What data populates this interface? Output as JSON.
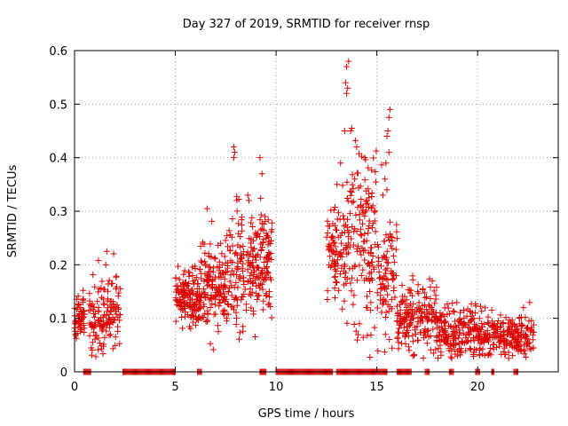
{
  "chart_data": {
    "type": "scatter",
    "title": "Day 327 of 2019, SRMTID for receiver rnsp",
    "xlabel": "GPS time / hours",
    "ylabel": "SRMTID / TECUs",
    "xlim": [
      0,
      24
    ],
    "ylim": [
      0,
      0.6
    ],
    "xticks": [
      0,
      5,
      10,
      15,
      20
    ],
    "xtick_labels": [
      "0",
      "5",
      "10",
      "15",
      "20"
    ],
    "yticks": [
      0,
      0.1,
      0.2,
      0.3,
      0.4,
      0.5,
      0.6
    ],
    "ytick_labels": [
      "0",
      "0.1",
      "0.2",
      "0.3",
      "0.4",
      "0.5",
      "0.6"
    ],
    "grid": true,
    "marker": "+",
    "marker_color": "#dd0000",
    "series": [
      {
        "name": "SRMTID",
        "clusters": [
          {
            "x": [
              0.0,
              0.5
            ],
            "y_center": 0.1,
            "y_spread": 0.02,
            "count": 60
          },
          {
            "x": [
              0.7,
              1.3
            ],
            "y_center": 0.1,
            "y_spread": 0.035,
            "count": 50
          },
          {
            "x": [
              1.3,
              2.3
            ],
            "y_center": 0.115,
            "y_spread": 0.04,
            "count": 90
          },
          {
            "x": [
              5.0,
              6.2
            ],
            "y_center": 0.14,
            "y_spread": 0.03,
            "count": 140
          },
          {
            "x": [
              6.2,
              7.5
            ],
            "y_center": 0.16,
            "y_spread": 0.04,
            "count": 150
          },
          {
            "x": [
              7.5,
              9.8
            ],
            "y_center": 0.2,
            "y_spread": 0.055,
            "count": 240
          },
          {
            "x": [
              12.5,
              13.5
            ],
            "y_center": 0.22,
            "y_spread": 0.05,
            "count": 90
          },
          {
            "x": [
              13.5,
              15.0
            ],
            "y_center": 0.25,
            "y_spread": 0.09,
            "count": 150
          },
          {
            "x": [
              15.0,
              16.0
            ],
            "y_center": 0.18,
            "y_spread": 0.06,
            "count": 90
          },
          {
            "x": [
              16.0,
              18.0
            ],
            "y_center": 0.1,
            "y_spread": 0.03,
            "count": 180
          },
          {
            "x": [
              18.0,
              20.0
            ],
            "y_center": 0.075,
            "y_spread": 0.025,
            "count": 180
          },
          {
            "x": [
              20.0,
              22.8
            ],
            "y_center": 0.065,
            "y_spread": 0.022,
            "count": 240
          }
        ],
        "peaks": [
          {
            "x": 1.6,
            "y": 0.225
          },
          {
            "x": 1.55,
            "y": 0.2
          },
          {
            "x": 7.9,
            "y": 0.42
          },
          {
            "x": 7.95,
            "y": 0.41
          },
          {
            "x": 7.9,
            "y": 0.4
          },
          {
            "x": 8.05,
            "y": 0.32
          },
          {
            "x": 8.6,
            "y": 0.33
          },
          {
            "x": 8.65,
            "y": 0.32
          },
          {
            "x": 9.2,
            "y": 0.4
          },
          {
            "x": 9.3,
            "y": 0.37
          },
          {
            "x": 9.45,
            "y": 0.29
          },
          {
            "x": 13.6,
            "y": 0.58
          },
          {
            "x": 13.5,
            "y": 0.57
          },
          {
            "x": 13.45,
            "y": 0.54
          },
          {
            "x": 13.55,
            "y": 0.53
          },
          {
            "x": 13.5,
            "y": 0.52
          },
          {
            "x": 13.4,
            "y": 0.45
          },
          {
            "x": 13.75,
            "y": 0.455
          },
          {
            "x": 13.7,
            "y": 0.45
          },
          {
            "x": 13.2,
            "y": 0.39
          },
          {
            "x": 14.0,
            "y": 0.42
          },
          {
            "x": 14.4,
            "y": 0.4
          },
          {
            "x": 13.9,
            "y": 0.36
          },
          {
            "x": 15.65,
            "y": 0.49
          },
          {
            "x": 15.6,
            "y": 0.475
          },
          {
            "x": 15.55,
            "y": 0.45
          },
          {
            "x": 15.5,
            "y": 0.44
          },
          {
            "x": 15.6,
            "y": 0.41
          },
          {
            "x": 15.45,
            "y": 0.39
          },
          {
            "x": 15.4,
            "y": 0.36
          },
          {
            "x": 15.5,
            "y": 0.34
          },
          {
            "x": 15.3,
            "y": 0.33
          }
        ],
        "zero_ranges": [
          [
            0.45,
            0.8
          ],
          [
            2.4,
            5.0
          ],
          [
            6.1,
            6.3
          ],
          [
            9.2,
            9.5
          ],
          [
            10.0,
            12.8
          ],
          [
            13.0,
            15.5
          ],
          [
            16.0,
            16.7
          ],
          [
            17.4,
            17.6
          ],
          [
            18.6,
            18.8
          ],
          [
            19.9,
            20.1
          ],
          [
            20.7,
            20.8
          ],
          [
            21.8,
            22.0
          ]
        ],
        "gaps": [
          [
            2.4,
            5.0
          ],
          [
            9.9,
            12.5
          ]
        ]
      }
    ]
  }
}
